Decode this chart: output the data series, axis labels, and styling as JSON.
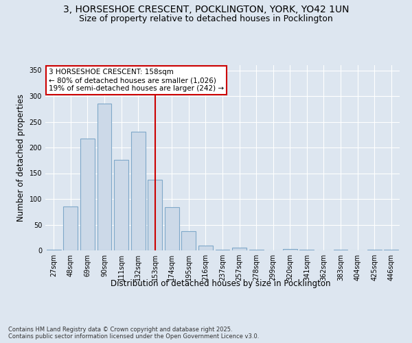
{
  "title_line1": "3, HORSESHOE CRESCENT, POCKLINGTON, YORK, YO42 1UN",
  "title_line2": "Size of property relative to detached houses in Pocklington",
  "xlabel": "Distribution of detached houses by size in Pocklington",
  "ylabel": "Number of detached properties",
  "categories": [
    "27sqm",
    "48sqm",
    "69sqm",
    "90sqm",
    "111sqm",
    "132sqm",
    "153sqm",
    "174sqm",
    "195sqm",
    "216sqm",
    "237sqm",
    "257sqm",
    "278sqm",
    "299sqm",
    "320sqm",
    "341sqm",
    "362sqm",
    "383sqm",
    "404sqm",
    "425sqm",
    "446sqm"
  ],
  "values": [
    2,
    85,
    218,
    285,
    176,
    231,
    138,
    84,
    38,
    10,
    2,
    6,
    2,
    0,
    3,
    2,
    0,
    1,
    0,
    1,
    1
  ],
  "bar_color": "#ccd9e8",
  "bar_edge_color": "#7fa8c9",
  "bar_linewidth": 0.8,
  "vline_x_index": 6,
  "vline_color": "#cc0000",
  "annotation_box_text": "3 HORSESHOE CRESCENT: 158sqm\n← 80% of detached houses are smaller (1,026)\n19% of semi-detached houses are larger (242) →",
  "annotation_box_color": "#cc0000",
  "ylim": [
    0,
    360
  ],
  "yticks": [
    0,
    50,
    100,
    150,
    200,
    250,
    300,
    350
  ],
  "background_color": "#dde6f0",
  "plot_background": "#dde6f0",
  "grid_color": "#ffffff",
  "footnote": "Contains HM Land Registry data © Crown copyright and database right 2025.\nContains public sector information licensed under the Open Government Licence v3.0.",
  "title_fontsize": 10,
  "subtitle_fontsize": 9,
  "axis_label_fontsize": 8.5,
  "tick_fontsize": 7,
  "annotation_fontsize": 7.5
}
